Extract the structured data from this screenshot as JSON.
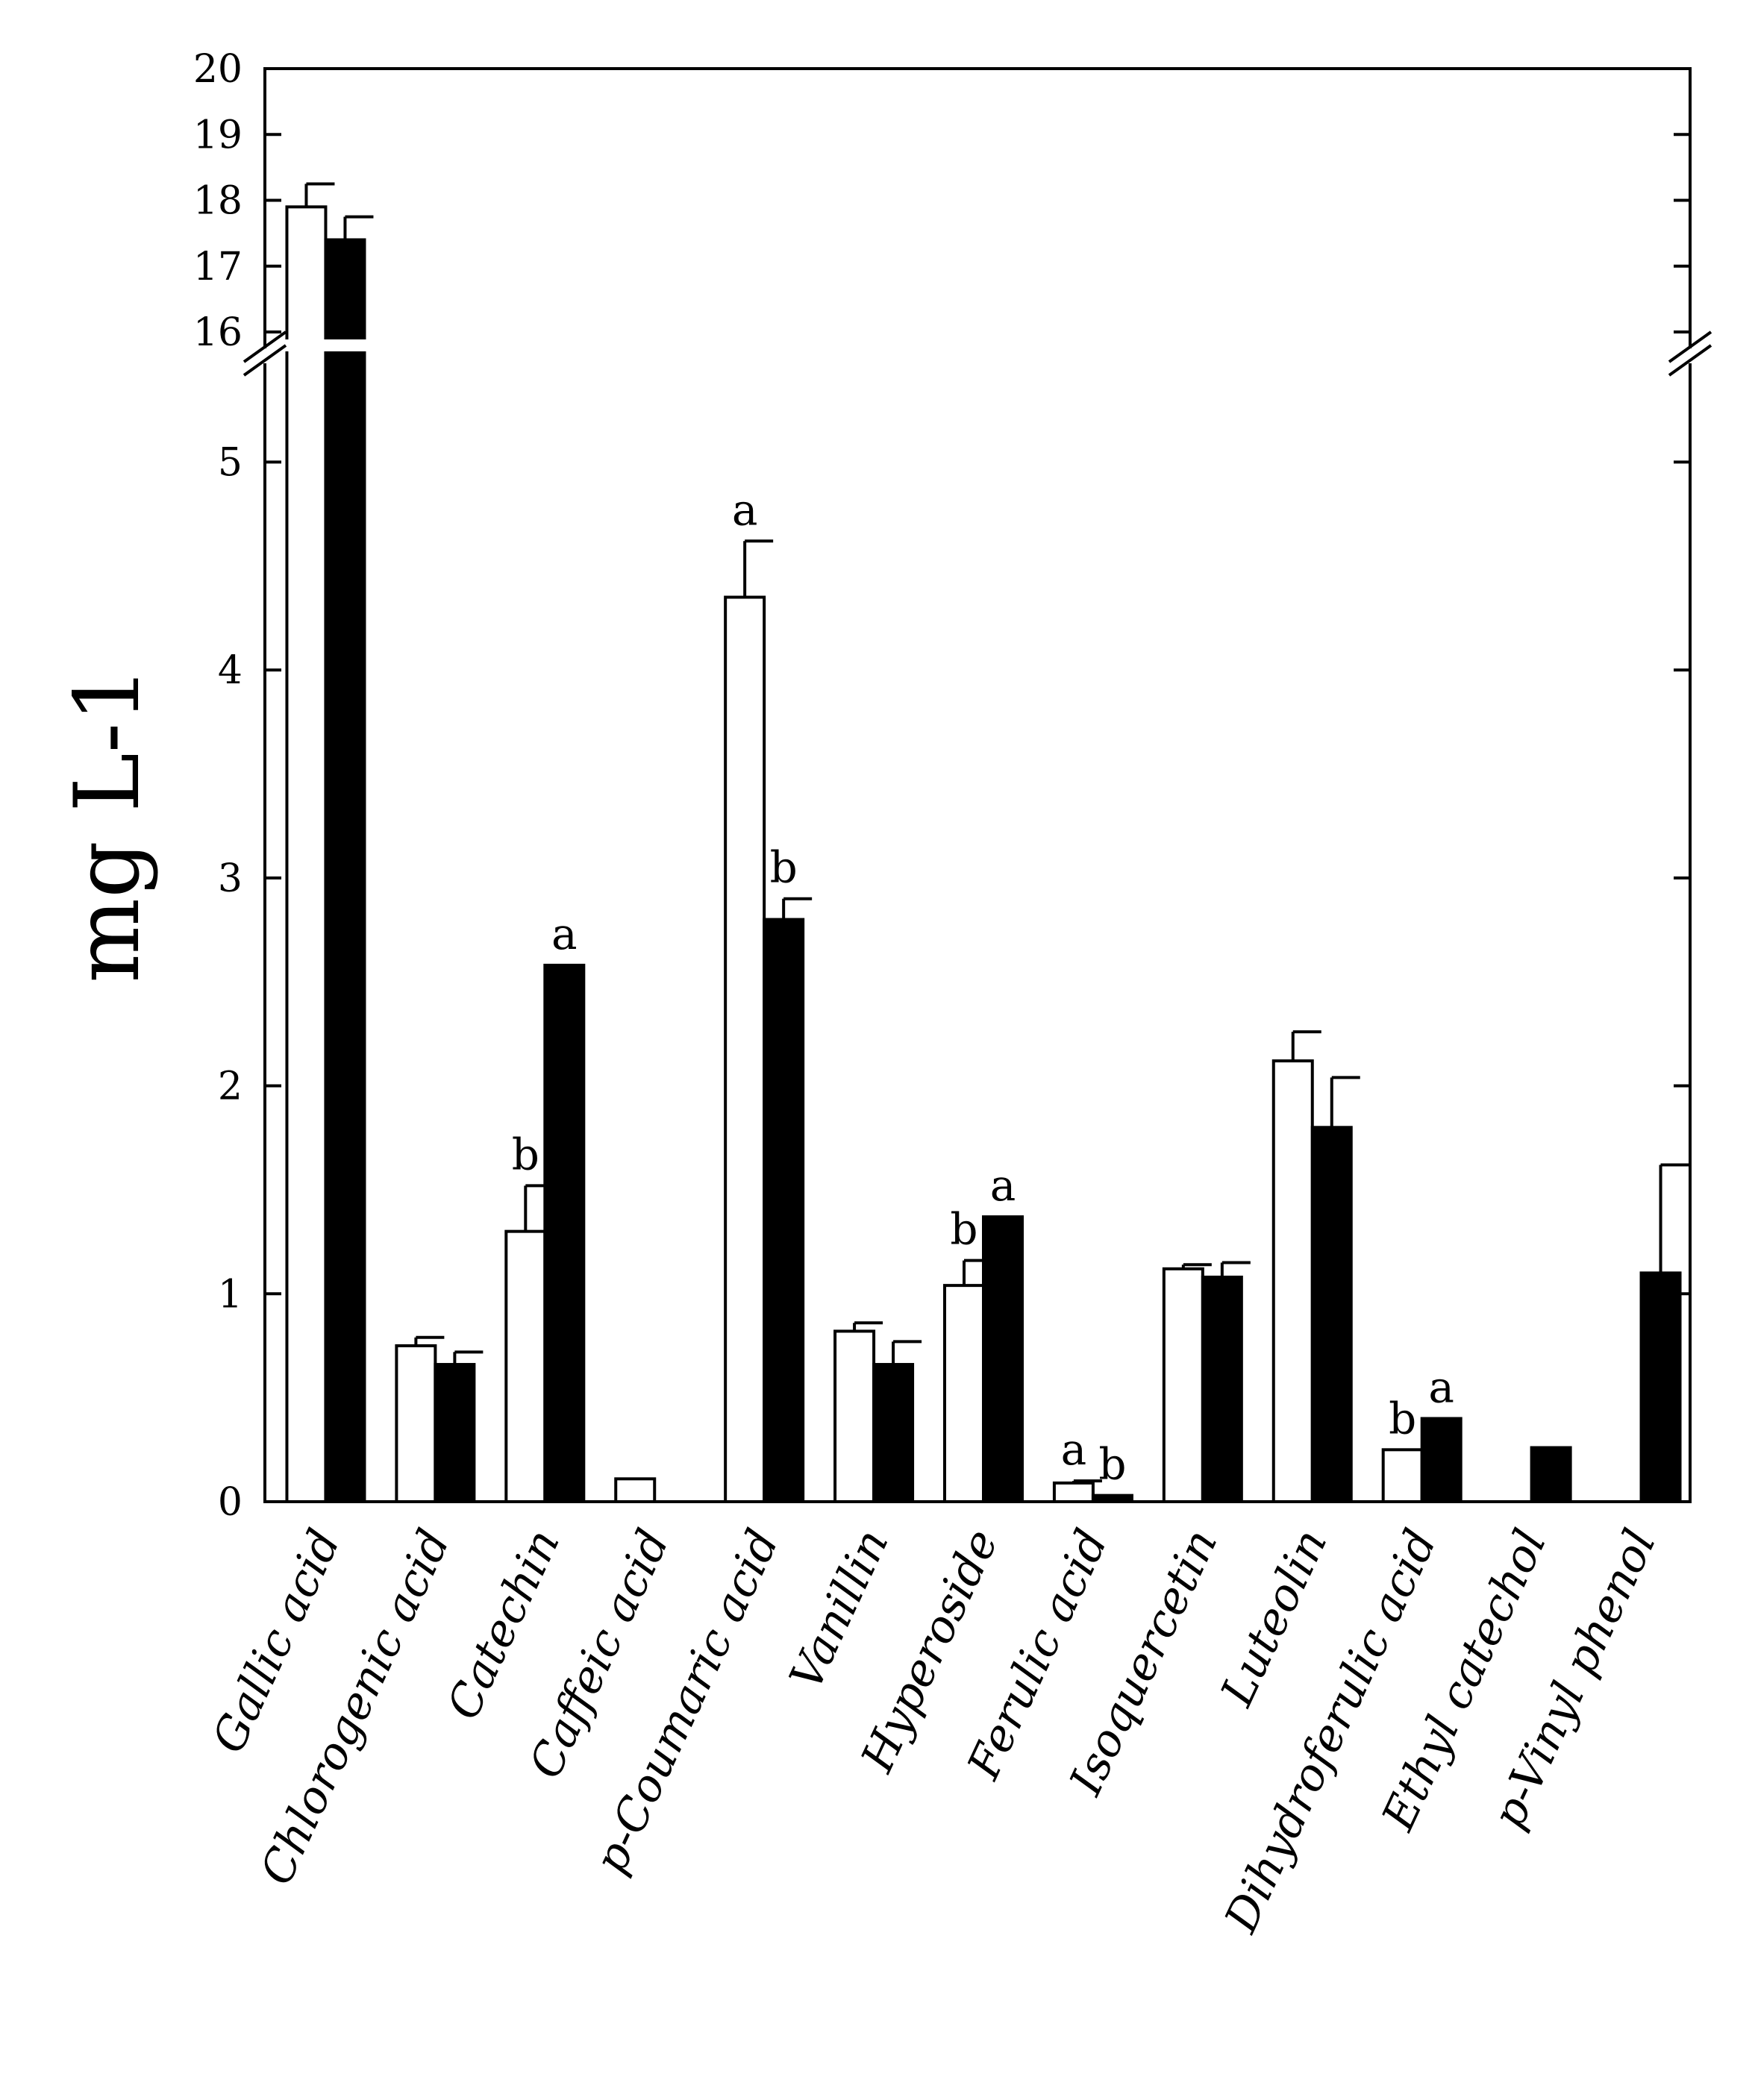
{
  "chart_data": {
    "type": "bar",
    "ylabel": "mg L-1",
    "categories": [
      "Gallic acid",
      "Chlorogenic acid",
      "Catechin",
      "Caffeic acid",
      "p-Coumaric acid",
      "Vanillin",
      "Hyperoside",
      "Ferulic acid",
      "Isoquercetin",
      "Luteolin",
      "Dihydroferulic acid",
      "Ethyl catechol",
      "p-Vinyl phenol"
    ],
    "series": [
      {
        "name": "white",
        "color": "#ffffff",
        "values": [
          17.9,
          0.75,
          1.3,
          0.11,
          4.35,
          0.82,
          1.04,
          0.09,
          1.12,
          2.12,
          0.25,
          null,
          null
        ],
        "errors": [
          0.35,
          0.04,
          0.22,
          0.0,
          0.27,
          0.04,
          0.12,
          0.01,
          0.02,
          0.14,
          0.0,
          null,
          null
        ],
        "sig": [
          "",
          "",
          "b",
          "",
          "a",
          "",
          "b",
          "a",
          "",
          "",
          "b",
          "",
          ""
        ]
      },
      {
        "name": "black",
        "color": "#000000",
        "values": [
          17.4,
          0.66,
          2.58,
          null,
          2.8,
          0.66,
          1.37,
          0.03,
          1.08,
          1.8,
          0.4,
          0.26,
          1.1
        ],
        "errors": [
          0.35,
          0.06,
          0.0,
          null,
          0.1,
          0.11,
          0.0,
          0.0,
          0.07,
          0.24,
          0.0,
          0.0,
          0.52
        ],
        "sig": [
          "",
          "",
          "a",
          "",
          "b",
          "",
          "a",
          "b",
          "",
          "",
          "a",
          "",
          ""
        ]
      }
    ],
    "y_lower": {
      "range": [
        0,
        5.5
      ],
      "ticks": [
        "0",
        "1",
        "2",
        "3",
        "4",
        "5"
      ]
    },
    "y_upper": {
      "range": [
        16,
        20
      ],
      "ticks": [
        "16",
        "17",
        "18",
        "19",
        "20"
      ]
    },
    "axis_break": true
  }
}
